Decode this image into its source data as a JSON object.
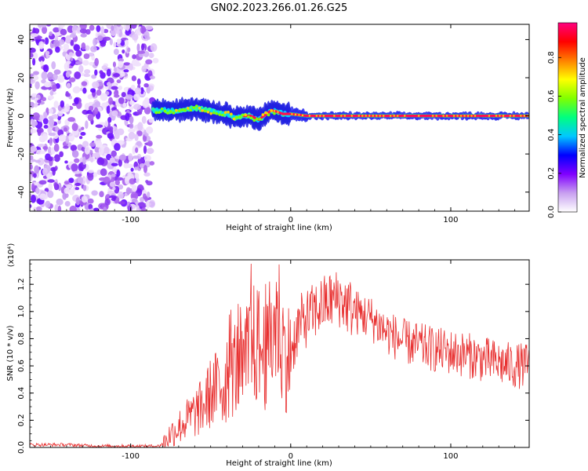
{
  "title": "GN02.2023.266.01.26.G25",
  "chart_data": [
    {
      "type": "heatmap",
      "xlabel": "Height of straight line (km)",
      "ylabel": "Frequency (Hz)",
      "xlim": [
        -163,
        149
      ],
      "ylim": [
        -50,
        48
      ],
      "xticks": [
        -100,
        0,
        100
      ],
      "xtick_labels": [
        "-100",
        "0",
        "100"
      ],
      "yticks": [
        -40,
        -20,
        0,
        20,
        40
      ],
      "ytick_labels": [
        "-40",
        "-20",
        "0",
        "20",
        "40"
      ],
      "noise_region_x": [
        -163,
        -84
      ],
      "signal_trace": {
        "x": [
          -86,
          -80,
          -75,
          -70,
          -65,
          -60,
          -55,
          -50,
          -45,
          -40,
          -35,
          -30,
          -25,
          -20,
          -15,
          -12,
          -8,
          -5,
          0,
          5,
          10,
          20,
          40,
          60,
          80,
          100,
          120,
          149
        ],
        "y": [
          3,
          3,
          2.5,
          3,
          3.5,
          4,
          3.5,
          2.5,
          1.5,
          1,
          -1,
          0,
          0,
          -2,
          1,
          3,
          2,
          1,
          1,
          0.5,
          0,
          0,
          0,
          0,
          0,
          0,
          0,
          0
        ]
      },
      "colorbar": {
        "label": "Normalized spectral amplitude",
        "ticks": [
          0.0,
          0.2,
          0.4,
          0.6,
          0.8
        ],
        "tick_labels": [
          "0.0",
          "0.2",
          "0.4",
          "0.6",
          "0.8"
        ],
        "colors": [
          "#ffffff",
          "#c8a0f0",
          "#8000ff",
          "#0000ff",
          "#00c8ff",
          "#00ff80",
          "#80ff00",
          "#ffff00",
          "#ff8000",
          "#ff0000",
          "#ff0080"
        ]
      }
    },
    {
      "type": "line",
      "xlabel": "Height of straight line (km)",
      "ylabel": "SNR (10 * v/v)",
      "scale_label": "(x10⁴)",
      "xlim": [
        -163,
        149
      ],
      "ylim": [
        0,
        1.38
      ],
      "xticks": [
        -100,
        0,
        100
      ],
      "xtick_labels": [
        "-100",
        "0",
        "100"
      ],
      "yticks": [
        0.0,
        0.2,
        0.4,
        0.6,
        0.8,
        1.0,
        1.2
      ],
      "ytick_labels": [
        "0.0",
        "0.2",
        "0.4",
        "0.6",
        "0.8",
        "1.0",
        "1.2"
      ],
      "color": "#e83030",
      "series": [
        {
          "x": [
            -163,
            -140,
            -120,
            -100,
            -90,
            -82,
            -78,
            -75,
            -70,
            -65,
            -60,
            -55,
            -50,
            -45,
            -40,
            -35,
            -30,
            -25,
            -20,
            -15,
            -12,
            -8,
            -5,
            -2,
            0,
            5,
            10,
            15,
            20,
            25,
            30,
            35,
            40,
            50,
            60,
            70,
            80,
            90,
            100,
            110,
            120,
            130,
            140,
            149
          ],
          "y": [
            0.02,
            0.02,
            0.01,
            0.01,
            0.01,
            0.01,
            0.05,
            0.1,
            0.15,
            0.2,
            0.25,
            0.3,
            0.4,
            0.45,
            0.5,
            0.6,
            0.55,
            0.75,
            0.75,
            0.65,
            0.85,
            0.95,
            0.75,
            0.65,
            0.7,
            0.9,
            0.95,
            1.0,
            1.05,
            1.08,
            1.1,
            1.05,
            1.0,
            0.95,
            0.85,
            0.78,
            0.75,
            0.72,
            0.7,
            0.68,
            0.65,
            0.62,
            0.6,
            0.6
          ]
        }
      ]
    }
  ]
}
